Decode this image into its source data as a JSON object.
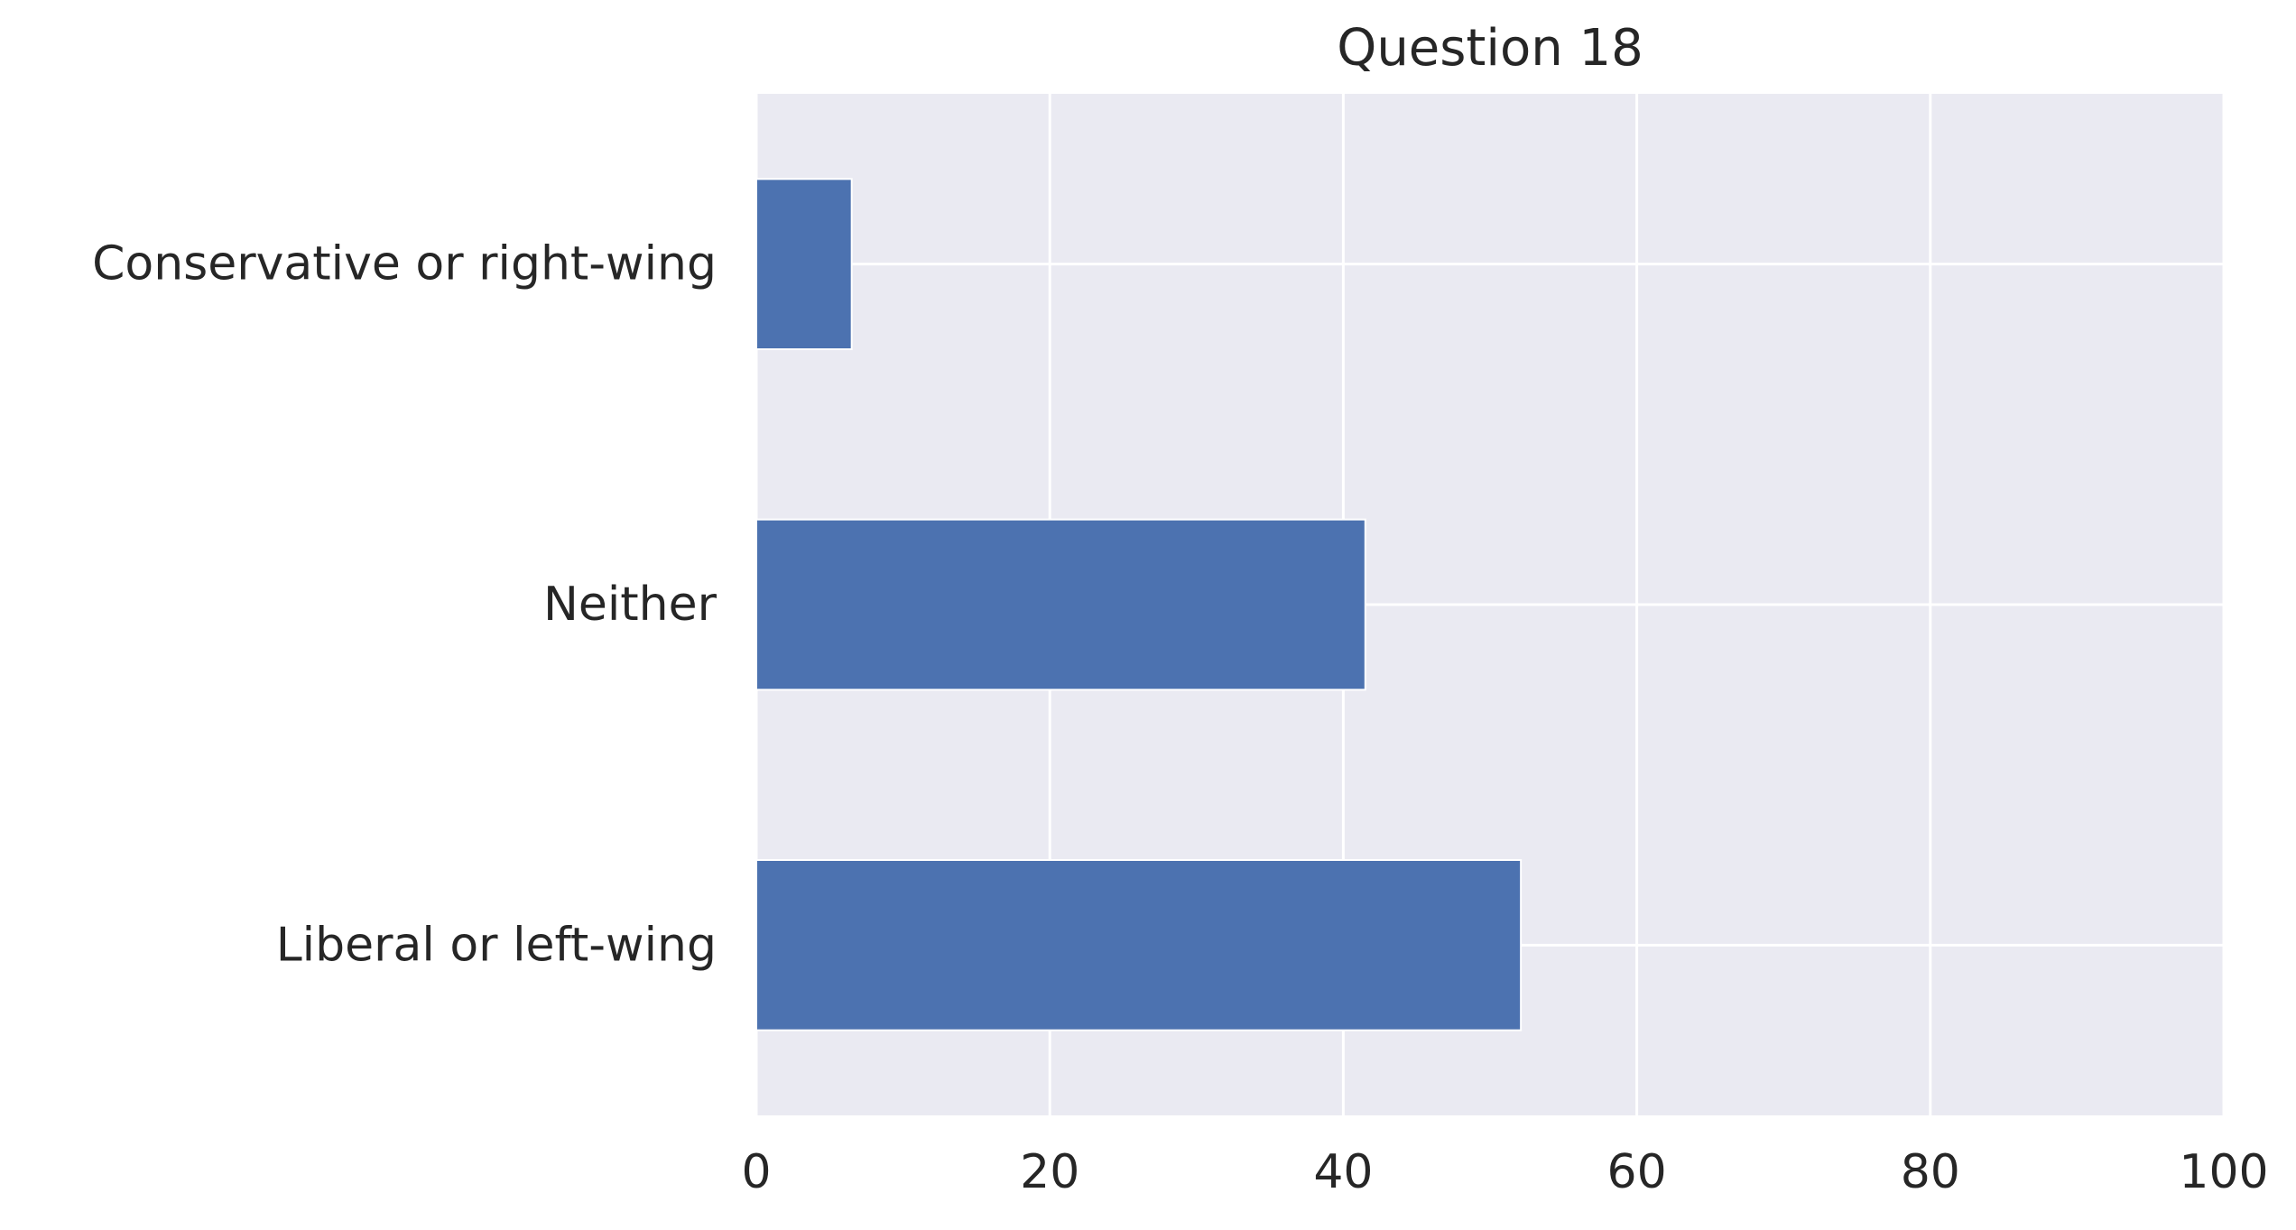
{
  "chart_data": {
    "type": "bar",
    "orientation": "horizontal",
    "title": "Question 18",
    "xlabel": "",
    "ylabel": "",
    "categories": [
      "Conservative or right-wing",
      "Neither",
      "Liberal or left-wing"
    ],
    "values": [
      6.5,
      41.5,
      52.1
    ],
    "xlim": [
      0,
      100
    ],
    "xticks": [
      "0",
      "20",
      "40",
      "60",
      "80",
      "100"
    ],
    "grid": true,
    "legend": "none",
    "colors": {
      "bar": "#4c72b0",
      "plot_background": "#eaeaf2",
      "grid": "#ffffff",
      "text": "#262626"
    }
  }
}
